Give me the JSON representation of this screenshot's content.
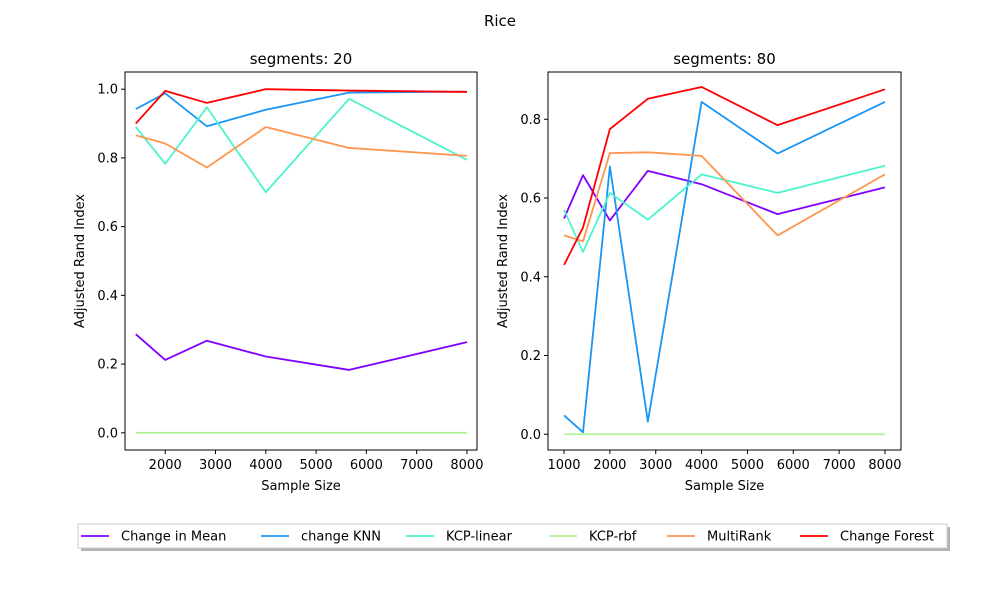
{
  "suptitle": "Rice",
  "legend": {
    "placement": "bottom-center",
    "entries": [
      {
        "label": "Change in Mean",
        "color": "#8000ff"
      },
      {
        "label": "change KNN",
        "color": "#1996f3"
      },
      {
        "label": "KCP-linear",
        "color": "#4df3ce"
      },
      {
        "label": "KCP-rbf",
        "color": "#b2f396"
      },
      {
        "label": "MultiRank",
        "color": "#ff964f"
      },
      {
        "label": "Change Forest",
        "color": "#ff0000"
      }
    ]
  },
  "chart_data": [
    {
      "type": "line",
      "title": "segments: 20",
      "xlabel": "Sample Size",
      "ylabel": "Adjusted Rand Index",
      "xlim": [
        1200,
        8200
      ],
      "ylim": [
        -0.05,
        1.05
      ],
      "xticks": [
        2000,
        3000,
        4000,
        5000,
        6000,
        7000,
        8000
      ],
      "yticks": [
        0.0,
        0.2,
        0.4,
        0.6,
        0.8,
        1.0
      ],
      "ytick_labels": [
        "0.0",
        "0.2",
        "0.4",
        "0.6",
        "0.8",
        "1.0"
      ],
      "x": [
        1414,
        2000,
        2828,
        4000,
        5657,
        8000
      ],
      "series": [
        {
          "name": "Change in Mean",
          "color": "#8000ff",
          "values": [
            0.287,
            0.212,
            0.268,
            0.222,
            0.183,
            0.264
          ]
        },
        {
          "name": "change KNN",
          "color": "#1996f3",
          "values": [
            0.942,
            0.988,
            0.892,
            0.94,
            0.99,
            0.993
          ]
        },
        {
          "name": "KCP-linear",
          "color": "#4df3ce",
          "values": [
            0.89,
            0.783,
            0.947,
            0.7,
            0.972,
            0.794
          ]
        },
        {
          "name": "KCP-rbf",
          "color": "#b2f396",
          "values": [
            0.0,
            0.0,
            0.0,
            0.0,
            0.0,
            0.0
          ]
        },
        {
          "name": "MultiRank",
          "color": "#ff964f",
          "values": [
            0.866,
            0.842,
            0.772,
            0.89,
            0.829,
            0.806
          ]
        },
        {
          "name": "Change Forest",
          "color": "#ff0000",
          "values": [
            0.9,
            0.995,
            0.96,
            1.0,
            0.996,
            0.992
          ]
        }
      ]
    },
    {
      "type": "line",
      "title": "segments: 80",
      "xlabel": "Sample Size",
      "ylabel": "Adjusted Rand Index",
      "xlim": [
        650,
        8350
      ],
      "ylim": [
        -0.04,
        0.92
      ],
      "xticks": [
        1000,
        2000,
        3000,
        4000,
        5000,
        6000,
        7000,
        8000
      ],
      "yticks": [
        0.0,
        0.2,
        0.4,
        0.6,
        0.8
      ],
      "ytick_labels": [
        "0.0",
        "0.2",
        "0.4",
        "0.6",
        "0.8"
      ],
      "x": [
        1000,
        1414,
        2000,
        2828,
        4000,
        5657,
        8000
      ],
      "series": [
        {
          "name": "Change in Mean",
          "color": "#8000ff",
          "values": [
            0.548,
            0.658,
            0.543,
            0.669,
            0.635,
            0.559,
            0.627
          ]
        },
        {
          "name": "change KNN",
          "color": "#1996f3",
          "values": [
            0.048,
            0.005,
            0.68,
            0.032,
            0.844,
            0.713,
            0.844
          ]
        },
        {
          "name": "KCP-linear",
          "color": "#4df3ce",
          "values": [
            0.57,
            0.463,
            0.613,
            0.545,
            0.66,
            0.613,
            0.682
          ]
        },
        {
          "name": "KCP-rbf",
          "color": "#b2f396",
          "values": [
            0.0,
            0.0,
            0.0,
            0.0,
            0.0,
            0.0,
            0.0
          ]
        },
        {
          "name": "MultiRank",
          "color": "#ff964f",
          "values": [
            0.505,
            0.49,
            0.714,
            0.716,
            0.707,
            0.505,
            0.66
          ]
        },
        {
          "name": "Change Forest",
          "color": "#ff0000",
          "values": [
            0.43,
            0.525,
            0.775,
            0.852,
            0.882,
            0.785,
            0.876
          ]
        }
      ]
    }
  ]
}
